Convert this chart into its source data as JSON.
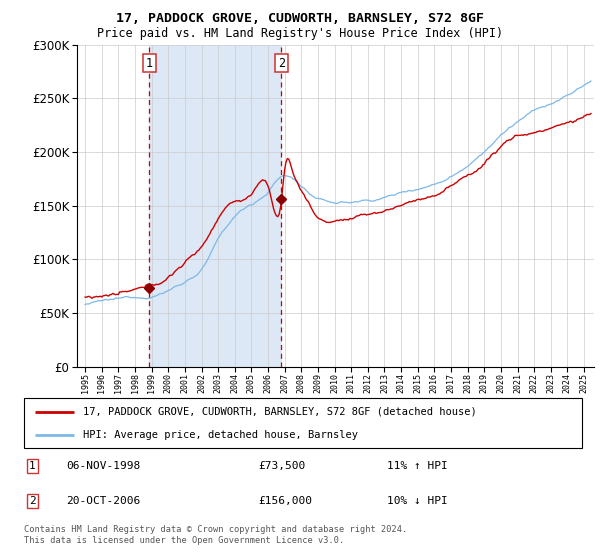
{
  "title_line1": "17, PADDOCK GROVE, CUDWORTH, BARNSLEY, S72 8GF",
  "title_line2": "Price paid vs. HM Land Registry's House Price Index (HPI)",
  "sale1_date": "1998-11-06",
  "sale1_price": 73500,
  "sale1_label": "1",
  "sale1_pct": "11% ↑ HPI",
  "sale1_display": "06-NOV-1998",
  "sale2_date": "2006-10-20",
  "sale2_price": 156000,
  "sale2_label": "2",
  "sale2_pct": "10% ↓ HPI",
  "sale2_display": "20-OCT-2006",
  "hpi_color": "#7db8e8",
  "price_color": "#cc0000",
  "sale_dot_color": "#8b0000",
  "vline_color": "#cc0000",
  "shade_color": "#dce8f5",
  "grid_color": "#cccccc",
  "background_color": "#ffffff",
  "legend_line1": "17, PADDOCK GROVE, CUDWORTH, BARNSLEY, S72 8GF (detached house)",
  "legend_line2": "HPI: Average price, detached house, Barnsley",
  "footer": "Contains HM Land Registry data © Crown copyright and database right 2024.\nThis data is licensed under the Open Government Licence v3.0.",
  "ylim": [
    0,
    300000
  ],
  "yticks": [
    0,
    50000,
    100000,
    150000,
    200000,
    250000,
    300000
  ],
  "year_start": 1995,
  "year_end": 2025
}
